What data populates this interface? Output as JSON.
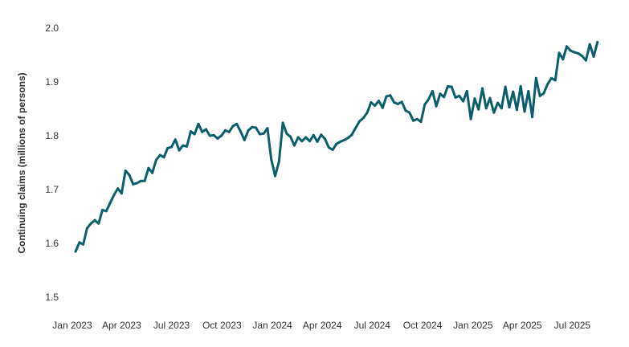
{
  "chart_data": {
    "type": "line",
    "title": "",
    "xlabel": "",
    "ylabel": "Continuing claims (millions of persons)",
    "ylim": [
      1.5,
      2.0
    ],
    "yticks": [
      "1.5",
      "1.6",
      "1.7",
      "1.8",
      "1.9",
      "2.0"
    ],
    "xlim": [
      "2023-01-01",
      "2025-08-31"
    ],
    "xticks": [
      {
        "date": "2023-01-01",
        "label": "Jan 2023"
      },
      {
        "date": "2023-04-01",
        "label": "Apr 2023"
      },
      {
        "date": "2023-07-01",
        "label": "Jul 2023"
      },
      {
        "date": "2023-10-01",
        "label": "Oct 2023"
      },
      {
        "date": "2024-01-01",
        "label": "Jan 2024"
      },
      {
        "date": "2024-04-01",
        "label": "Apr 2024"
      },
      {
        "date": "2024-07-01",
        "label": "Jul 2024"
      },
      {
        "date": "2024-10-01",
        "label": "Oct 2024"
      },
      {
        "date": "2025-01-01",
        "label": "Jan 2025"
      },
      {
        "date": "2025-04-01",
        "label": "Apr 2025"
      },
      {
        "date": "2025-07-01",
        "label": "Jul 2025"
      }
    ],
    "grid": false,
    "legend": "none",
    "line_color": "#0b5e6b",
    "series": [
      {
        "points": [
          [
            "2023-01-07",
            1.585
          ],
          [
            "2023-01-14",
            1.602
          ],
          [
            "2023-01-21",
            1.598
          ],
          [
            "2023-01-28",
            1.628
          ],
          [
            "2023-02-04",
            1.637
          ],
          [
            "2023-02-11",
            1.643
          ],
          [
            "2023-02-18",
            1.637
          ],
          [
            "2023-02-25",
            1.662
          ],
          [
            "2023-03-04",
            1.66
          ],
          [
            "2023-03-11",
            1.675
          ],
          [
            "2023-03-18",
            1.69
          ],
          [
            "2023-03-25",
            1.702
          ],
          [
            "2023-04-01",
            1.693
          ],
          [
            "2023-04-08",
            1.735
          ],
          [
            "2023-04-15",
            1.727
          ],
          [
            "2023-04-22",
            1.71
          ],
          [
            "2023-04-29",
            1.712
          ],
          [
            "2023-05-06",
            1.716
          ],
          [
            "2023-05-13",
            1.716
          ],
          [
            "2023-05-20",
            1.74
          ],
          [
            "2023-05-27",
            1.731
          ],
          [
            "2023-06-03",
            1.755
          ],
          [
            "2023-06-10",
            1.764
          ],
          [
            "2023-06-17",
            1.76
          ],
          [
            "2023-06-24",
            1.777
          ],
          [
            "2023-07-01",
            1.779
          ],
          [
            "2023-07-08",
            1.793
          ],
          [
            "2023-07-15",
            1.773
          ],
          [
            "2023-07-22",
            1.782
          ],
          [
            "2023-07-29",
            1.78
          ],
          [
            "2023-08-05",
            1.808
          ],
          [
            "2023-08-12",
            1.803
          ],
          [
            "2023-08-19",
            1.822
          ],
          [
            "2023-08-26",
            1.807
          ],
          [
            "2023-09-02",
            1.812
          ],
          [
            "2023-09-09",
            1.8
          ],
          [
            "2023-09-16",
            1.801
          ],
          [
            "2023-09-23",
            1.795
          ],
          [
            "2023-09-30",
            1.8
          ],
          [
            "2023-10-07",
            1.81
          ],
          [
            "2023-10-14",
            1.807
          ],
          [
            "2023-10-21",
            1.818
          ],
          [
            "2023-10-28",
            1.822
          ],
          [
            "2023-11-04",
            1.808
          ],
          [
            "2023-11-11",
            1.792
          ],
          [
            "2023-11-18",
            1.81
          ],
          [
            "2023-11-25",
            1.816
          ],
          [
            "2023-12-02",
            1.815
          ],
          [
            "2023-12-09",
            1.803
          ],
          [
            "2023-12-16",
            1.804
          ],
          [
            "2023-12-23",
            1.814
          ],
          [
            "2023-12-30",
            1.756
          ],
          [
            "2024-01-06",
            1.725
          ],
          [
            "2024-01-13",
            1.752
          ],
          [
            "2024-01-20",
            1.824
          ],
          [
            "2024-01-27",
            1.804
          ],
          [
            "2024-02-03",
            1.798
          ],
          [
            "2024-02-10",
            1.782
          ],
          [
            "2024-02-17",
            1.797
          ],
          [
            "2024-02-24",
            1.79
          ],
          [
            "2024-03-02",
            1.797
          ],
          [
            "2024-03-09",
            1.79
          ],
          [
            "2024-03-16",
            1.801
          ],
          [
            "2024-03-23",
            1.789
          ],
          [
            "2024-03-30",
            1.802
          ],
          [
            "2024-04-06",
            1.794
          ],
          [
            "2024-04-13",
            1.778
          ],
          [
            "2024-04-20",
            1.774
          ],
          [
            "2024-04-27",
            1.785
          ],
          [
            "2024-05-04",
            1.789
          ],
          [
            "2024-05-11",
            1.792
          ],
          [
            "2024-05-18",
            1.796
          ],
          [
            "2024-05-25",
            1.802
          ],
          [
            "2024-06-01",
            1.815
          ],
          [
            "2024-06-08",
            1.827
          ],
          [
            "2024-06-15",
            1.833
          ],
          [
            "2024-06-22",
            1.843
          ],
          [
            "2024-06-29",
            1.862
          ],
          [
            "2024-07-06",
            1.856
          ],
          [
            "2024-07-13",
            1.865
          ],
          [
            "2024-07-20",
            1.852
          ],
          [
            "2024-07-27",
            1.873
          ],
          [
            "2024-08-03",
            1.875
          ],
          [
            "2024-08-10",
            1.862
          ],
          [
            "2024-08-17",
            1.859
          ],
          [
            "2024-08-24",
            1.863
          ],
          [
            "2024-08-31",
            1.847
          ],
          [
            "2024-09-07",
            1.843
          ],
          [
            "2024-09-14",
            1.828
          ],
          [
            "2024-09-21",
            1.831
          ],
          [
            "2024-09-28",
            1.826
          ],
          [
            "2024-10-05",
            1.858
          ],
          [
            "2024-10-12",
            1.868
          ],
          [
            "2024-10-19",
            1.883
          ],
          [
            "2024-10-26",
            1.855
          ],
          [
            "2024-11-02",
            1.878
          ],
          [
            "2024-11-09",
            1.872
          ],
          [
            "2024-11-16",
            1.892
          ],
          [
            "2024-11-23",
            1.891
          ],
          [
            "2024-11-30",
            1.871
          ],
          [
            "2024-12-07",
            1.874
          ],
          [
            "2024-12-14",
            1.864
          ],
          [
            "2024-12-21",
            1.883
          ],
          [
            "2024-12-28",
            1.831
          ],
          [
            "2025-01-04",
            1.869
          ],
          [
            "2025-01-11",
            1.849
          ],
          [
            "2025-01-18",
            1.888
          ],
          [
            "2025-01-25",
            1.851
          ],
          [
            "2025-02-01",
            1.87
          ],
          [
            "2025-02-08",
            1.843
          ],
          [
            "2025-02-15",
            1.861
          ],
          [
            "2025-02-22",
            1.851
          ],
          [
            "2025-03-01",
            1.891
          ],
          [
            "2025-03-08",
            1.853
          ],
          [
            "2025-03-15",
            1.882
          ],
          [
            "2025-03-22",
            1.848
          ],
          [
            "2025-03-29",
            1.892
          ],
          [
            "2025-04-05",
            1.845
          ],
          [
            "2025-04-12",
            1.883
          ],
          [
            "2025-04-19",
            1.835
          ],
          [
            "2025-04-26",
            1.907
          ],
          [
            "2025-05-03",
            1.874
          ],
          [
            "2025-05-10",
            1.879
          ],
          [
            "2025-05-17",
            1.896
          ],
          [
            "2025-05-24",
            1.907
          ],
          [
            "2025-05-31",
            1.903
          ],
          [
            "2025-06-07",
            1.954
          ],
          [
            "2025-06-14",
            1.942
          ],
          [
            "2025-06-21",
            1.966
          ],
          [
            "2025-06-28",
            1.958
          ],
          [
            "2025-07-05",
            1.955
          ],
          [
            "2025-07-12",
            1.953
          ],
          [
            "2025-07-19",
            1.948
          ],
          [
            "2025-07-26",
            1.94
          ],
          [
            "2025-08-02",
            1.97
          ],
          [
            "2025-08-09",
            1.947
          ],
          [
            "2025-08-16",
            1.974
          ]
        ]
      }
    ]
  }
}
